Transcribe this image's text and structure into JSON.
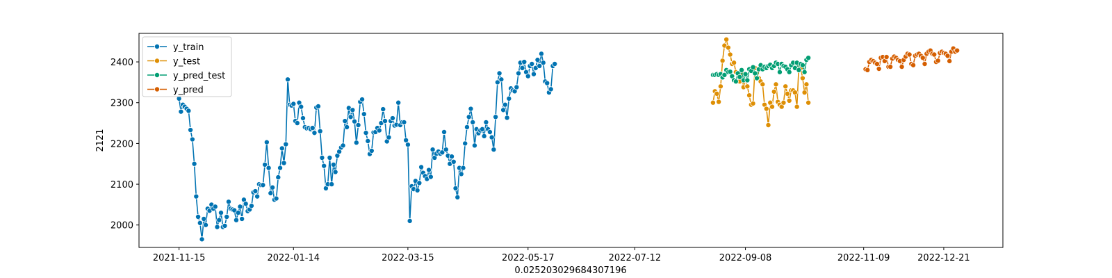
{
  "chart_data": {
    "type": "line",
    "xlabel": "0.025203029684307196",
    "ylabel": "2121",
    "xlim": [
      "2021-10-25",
      "2023-01-21"
    ],
    "ylim": [
      1945,
      2470
    ],
    "grid": false,
    "legend_position": "top-left",
    "x_ticks": [
      "2021-11-15",
      "2022-01-14",
      "2022-03-15",
      "2022-05-17",
      "2022-07-12",
      "2022-09-08",
      "2022-11-09",
      "2022-12-21"
    ],
    "y_ticks": [
      2000,
      2100,
      2200,
      2300,
      2400
    ],
    "series": [
      {
        "name": "y_train",
        "color": "#0173b2",
        "start": "2021-11-15",
        "values": [
          2310,
          2278,
          2295,
          2290,
          2285,
          2280,
          2233,
          2210,
          2150,
          2070,
          2020,
          2005,
          1965,
          2015,
          2000,
          2040,
          2035,
          2050,
          2040,
          2045,
          1995,
          2012,
          2030,
          1995,
          1998,
          2020,
          2057,
          2040,
          2038,
          2036,
          2012,
          2030,
          2045,
          2015,
          2062,
          2052,
          2034,
          2038,
          2047,
          2080,
          2083,
          2070,
          2100,
          2098,
          2098,
          2148,
          2203,
          2140,
          2078,
          2092,
          2062,
          2065,
          2117,
          2140,
          2188,
          2152,
          2198,
          2357,
          2295,
          2293,
          2297,
          2255,
          2250,
          2300,
          2290,
          2262,
          2240,
          2237,
          2238,
          2235,
          2238,
          2226,
          2288,
          2291,
          2230,
          2165,
          2145,
          2090,
          2100,
          2165,
          2100,
          2148,
          2130,
          2170,
          2180,
          2190,
          2195,
          2255,
          2240,
          2287,
          2265,
          2282,
          2254,
          2202,
          2245,
          2302,
          2308,
          2272,
          2226,
          2206,
          2174,
          2182,
          2227,
          2228,
          2238,
          2232,
          2250,
          2284,
          2255,
          2205,
          2215,
          2255,
          2262,
          2244,
          2246,
          2300,
          2245,
          2252,
          2252,
          2208,
          2197,
          2010,
          2095,
          2088,
          2108,
          2085,
          2103,
          2142,
          2128,
          2120,
          2113,
          2135,
          2118,
          2185,
          2165,
          2175,
          2180,
          2175,
          2178,
          2228,
          2185,
          2170,
          2150,
          2168,
          2155,
          2090,
          2068,
          2140,
          2125,
          2140,
          2200,
          2240,
          2265,
          2285,
          2252,
          2195,
          2235,
          2225,
          2232,
          2235,
          2218,
          2252,
          2235,
          2228,
          2215,
          2185,
          2265,
          2350,
          2372,
          2357,
          2282,
          2295,
          2263,
          2310,
          2335,
          2330,
          2328,
          2338,
          2372,
          2398,
          2385,
          2400,
          2375,
          2365,
          2390,
          2395,
          2370,
          2385,
          2405,
          2390,
          2420,
          2398,
          2352,
          2348,
          2325,
          2333,
          2390,
          2395
        ]
      },
      {
        "name": "y_test",
        "color": "#de8f05",
        "start": "2022-08-22",
        "values": [
          2300,
          2328,
          2322,
          2302,
          2340,
          2403,
          2440,
          2455,
          2435,
          2418,
          2395,
          2398,
          2375,
          2370,
          2352,
          2373,
          2338,
          2355,
          2340,
          2318,
          2295,
          2298,
          2385,
          2373,
          2360,
          2352,
          2345,
          2295,
          2285,
          2245,
          2300,
          2290,
          2327,
          2345,
          2302,
          2295,
          2290,
          2300,
          2340,
          2322,
          2305,
          2330,
          2330,
          2325,
          2290,
          2388,
          2385,
          2360,
          2325,
          2345,
          2300
        ]
      },
      {
        "name": "y_pred_test",
        "color": "#029e73",
        "start": "2022-08-22",
        "values": [
          2368,
          2368,
          2370,
          2368,
          2370,
          2362,
          2368,
          2380,
          2375,
          2376,
          2365,
          2355,
          2352,
          2372,
          2363,
          2380,
          2355,
          2370,
          2355,
          2382,
          2378,
          2387,
          2372,
          2360,
          2382,
          2392,
          2382,
          2388,
          2385,
          2390,
          2393,
          2385,
          2390,
          2398,
          2395,
          2375,
          2395,
          2390,
          2388,
          2382,
          2375,
          2392,
          2398,
          2385,
          2398,
          2380,
          2395,
          2392,
          2375,
          2405,
          2410
        ]
      },
      {
        "name": "y_pred",
        "color": "#d55e00",
        "start": "2022-11-10",
        "values": [
          2382,
          2380,
          2400,
          2405,
          2402,
          2398,
          2395,
          2383,
          2410,
          2412,
          2402,
          2412,
          2388,
          2388,
          2408,
          2413,
          2410,
          2405,
          2402,
          2388,
          2405,
          2413,
          2420,
          2418,
          2395,
          2392,
          2415,
          2418,
          2420,
          2415,
          2410,
          2395,
          2420,
          2425,
          2428,
          2420,
          2418,
          2400,
          2403,
          2422,
          2425,
          2422,
          2420,
          2415,
          2402,
          2425,
          2433,
          2425,
          2428
        ]
      }
    ]
  }
}
